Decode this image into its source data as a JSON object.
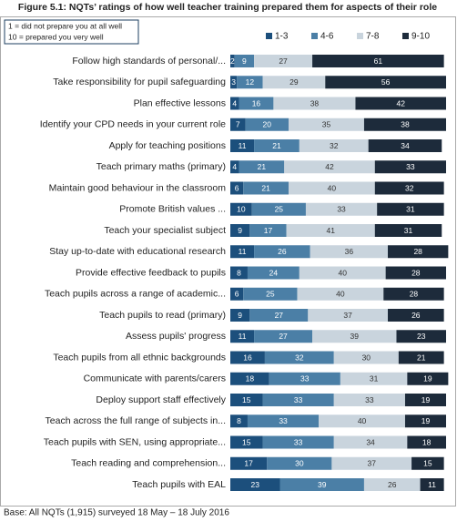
{
  "chart_data": {
    "type": "stacked_barh",
    "title": "Figure 5.1: NQTs’ ratings of how well teacher training prepared them for aspects of their role",
    "annotations": [
      "1 = did not prepare you at all well",
      "10 = prepared you very well"
    ],
    "footnote": "Base: All NQTs (1,915) surveyed 18 May – 18 July 2016",
    "legend": "top-right",
    "xlim": [
      0,
      100
    ],
    "categories": [
      "Follow high standards of personal/...",
      "Take responsibility for pupil safeguarding",
      "Plan effective lessons",
      "Identify your CPD needs in your current role",
      "Apply for teaching positions",
      "Teach primary maths (primary)",
      "Maintain good behaviour in the classroom",
      "Promote British values ...",
      "Teach your specialist subject",
      "Stay up-to-date with educational research",
      "Provide effective feedback to pupils",
      "Teach pupils across a range of academic...",
      "Teach pupils to read (primary)",
      "Assess pupils' progress",
      "Teach pupils from all ethnic backgrounds",
      "Communicate with parents/carers",
      "Deploy support staff effectively",
      "Teach across the full range of subjects in...",
      "Teach pupils with SEN, using appropriate...",
      "Teach reading and comprehension...",
      "Teach pupils with EAL"
    ],
    "series": [
      {
        "name": "1-3",
        "color": "#1c4f7c",
        "values": [
          2,
          3,
          4,
          7,
          11,
          4,
          6,
          10,
          9,
          11,
          8,
          6,
          9,
          11,
          16,
          18,
          15,
          8,
          15,
          17,
          23
        ]
      },
      {
        "name": "4-6",
        "color": "#4b7fa6",
        "values": [
          9,
          12,
          16,
          20,
          21,
          21,
          21,
          25,
          17,
          26,
          24,
          25,
          27,
          27,
          32,
          33,
          33,
          33,
          33,
          30,
          39
        ]
      },
      {
        "name": "7-8",
        "color": "#c9d4dd",
        "values": [
          27,
          29,
          38,
          35,
          32,
          42,
          40,
          33,
          41,
          36,
          40,
          40,
          37,
          39,
          30,
          31,
          33,
          40,
          34,
          37,
          26
        ]
      },
      {
        "name": "9-10",
        "color": "#1d2b3b",
        "values": [
          61,
          56,
          42,
          38,
          34,
          33,
          32,
          31,
          31,
          28,
          28,
          28,
          26,
          23,
          21,
          19,
          19,
          19,
          18,
          15,
          11
        ]
      }
    ]
  }
}
